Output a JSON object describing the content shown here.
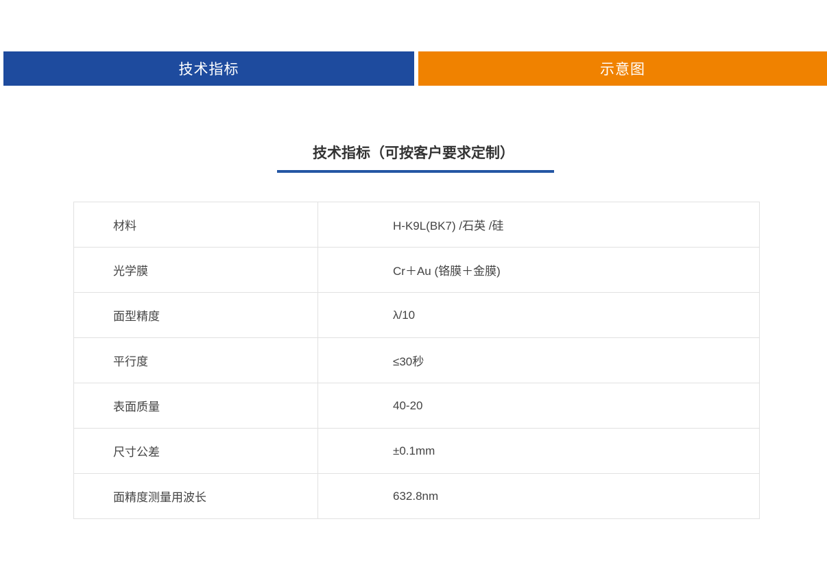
{
  "tabs": [
    {
      "id": "tech-specs",
      "label": "技术指标",
      "color": "#1e4b9e",
      "active": true
    },
    {
      "id": "schematic",
      "label": "示意图",
      "color": "#f08200",
      "active": false
    }
  ],
  "section": {
    "title": "技术指标（可按客户要求定制）",
    "underline_color": "#2456a4"
  },
  "spec_table": {
    "rows": [
      {
        "label": "材料",
        "value": "H-K9L(BK7) /石英 /硅"
      },
      {
        "label": "光学膜",
        "value": "Cr＋Au (铬膜＋金膜)"
      },
      {
        "label": "面型精度",
        "value": "λ/10"
      },
      {
        "label": "平行度",
        "value": "≤30秒"
      },
      {
        "label": "表面质量",
        "value": "40-20"
      },
      {
        "label": "尺寸公差",
        "value": "±0.1mm"
      },
      {
        "label": "面精度测量用波长",
        "value": "632.8nm"
      }
    ]
  },
  "colors": {
    "tab_blue": "#1e4b9e",
    "tab_orange": "#f08200",
    "underline_blue": "#2456a4",
    "table_border": "#e1e1e1",
    "text": "#444444",
    "title_text": "#333333"
  }
}
